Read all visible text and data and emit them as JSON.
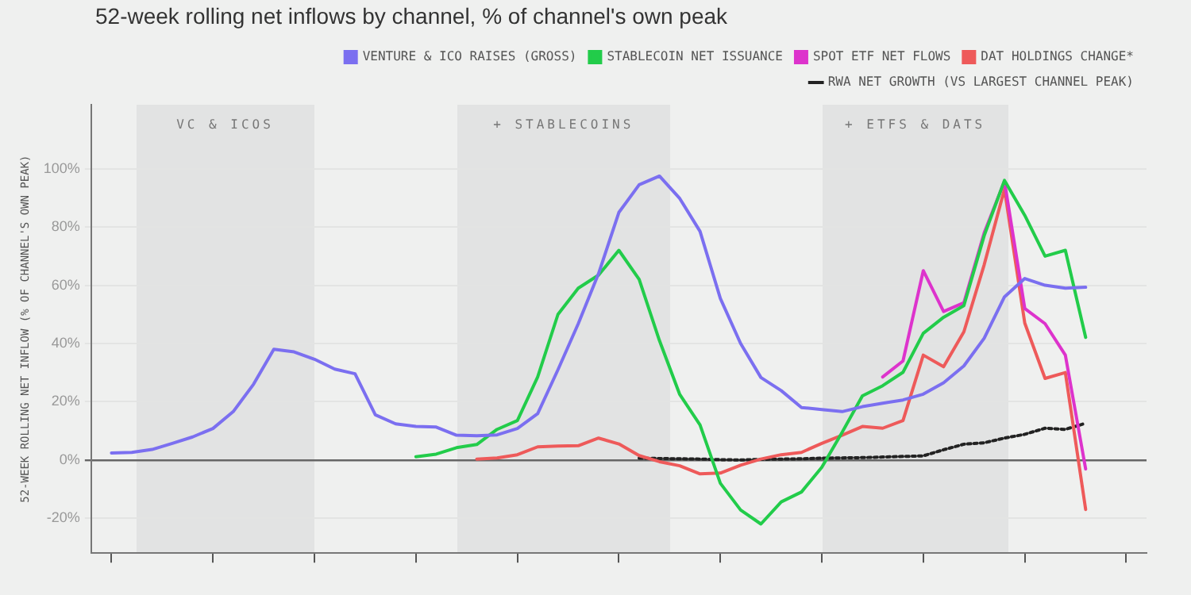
{
  "chart_data": {
    "type": "line",
    "title": "52-week rolling net inflows by channel, % of channel's own peak",
    "ylabel": "52-WEEK ROLLING NET INFLOW (% OF CHANNEL'S OWN PEAK)",
    "categories": [
      null,
      null,
      null,
      null,
      null,
      null,
      null,
      null,
      null,
      null,
      null,
      null,
      null,
      null,
      null,
      null,
      null,
      null,
      null,
      null,
      null,
      null,
      null,
      null,
      null,
      null,
      null,
      null,
      null,
      null,
      null,
      null,
      null,
      null,
      null,
      null,
      null,
      null,
      null,
      null,
      null,
      null,
      null,
      null,
      null,
      null,
      null,
      null,
      null,
      null,
      null,
      null,
      null
    ],
    "ylim": [
      -32,
      122
    ],
    "yticks": [
      {
        "value": -20,
        "label": "-20%"
      },
      {
        "value": 0,
        "label": "0%"
      },
      {
        "value": 20,
        "label": "20%"
      },
      {
        "value": 40,
        "label": "40%"
      },
      {
        "value": 60,
        "label": "60%"
      },
      {
        "value": 80,
        "label": "80%"
      },
      {
        "value": 100,
        "label": "100%"
      }
    ],
    "grid": "y",
    "legend": "top right",
    "annotations": [
      "VC & ICOS",
      "+ STABLECOINS",
      "+ ETFS & DATS"
    ],
    "series": [
      {
        "name": "VENTURE & ICO RAISES (GROSS)",
        "color": "#7b6ff0",
        "values": [
          null,
          2.4,
          2.6,
          3.6,
          5.7,
          7.9,
          10.8,
          16.6,
          26,
          38,
          37.1,
          34.6,
          31.2,
          29.6,
          15.5,
          12.4,
          11.5,
          11.3,
          8.5,
          8.3,
          8.6,
          10.8,
          15.9,
          31,
          46.8,
          64,
          85,
          94.5,
          97.5,
          89.8,
          78.5,
          55.5,
          40,
          28.3,
          23.8,
          18,
          17.3,
          16.6,
          18.3,
          19.5,
          20.6,
          22.6,
          26.5,
          32.3,
          41.8,
          56,
          62.3,
          60,
          59,
          59.3,
          null,
          null,
          null
        ]
      },
      {
        "name": "STABLECOIN NET ISSUANCE",
        "color": "#22cc4a",
        "values": [
          null,
          null,
          null,
          null,
          null,
          null,
          null,
          null,
          null,
          null,
          null,
          null,
          null,
          null,
          null,
          null,
          1.1,
          2,
          4.2,
          5.3,
          10.5,
          13.5,
          28.5,
          50,
          59,
          63.5,
          72,
          62,
          41,
          22.5,
          12,
          -8,
          -17.2,
          -22,
          -14.4,
          -11,
          -2.5,
          9.5,
          22,
          25.5,
          30.1,
          43.5,
          49,
          53,
          77,
          96,
          84,
          70,
          72,
          42.1,
          null,
          null,
          null
        ]
      },
      {
        "name": "SPOT ETF NET FLOWS",
        "color": "#dd33cc",
        "values": [
          null,
          null,
          null,
          null,
          null,
          null,
          null,
          null,
          null,
          null,
          null,
          null,
          null,
          null,
          null,
          null,
          null,
          null,
          null,
          null,
          null,
          null,
          null,
          null,
          null,
          null,
          null,
          null,
          null,
          null,
          null,
          null,
          null,
          null,
          null,
          null,
          null,
          null,
          null,
          28.5,
          34,
          65,
          51,
          54,
          78,
          95.7,
          52,
          46.8,
          36,
          -3.1,
          null,
          null,
          null
        ]
      },
      {
        "name": "DAT HOLDINGS CHANGE*",
        "color": "#ee5a5a",
        "values": [
          null,
          null,
          null,
          null,
          null,
          null,
          null,
          null,
          null,
          null,
          null,
          null,
          null,
          null,
          null,
          null,
          null,
          null,
          null,
          0.3,
          0.7,
          1.8,
          4.5,
          4.8,
          4.9,
          7.5,
          5.5,
          1.5,
          -0.6,
          -2,
          -4.8,
          -4.5,
          -1.8,
          0.3,
          1.8,
          2.6,
          5.7,
          8.5,
          11.5,
          10.9,
          13.5,
          36,
          32,
          44,
          67,
          93,
          47,
          28,
          30,
          -17,
          null,
          null,
          null
        ]
      },
      {
        "name": "RWA NET GROWTH (VS LARGEST CHANNEL PEAK)",
        "color": "#222222",
        "line_style": "dotted",
        "values": [
          null,
          null,
          null,
          null,
          null,
          null,
          null,
          null,
          null,
          null,
          null,
          null,
          null,
          null,
          null,
          null,
          null,
          null,
          null,
          null,
          null,
          null,
          null,
          null,
          null,
          null,
          null,
          0.6,
          0.5,
          0.4,
          0.3,
          0.1,
          0,
          0.2,
          0.3,
          0.4,
          0.6,
          0.7,
          0.8,
          1,
          1.2,
          1.4,
          3.5,
          5.4,
          5.9,
          7.5,
          8.8,
          10.9,
          10.5,
          12.6,
          null,
          null,
          null
        ]
      }
    ]
  }
}
